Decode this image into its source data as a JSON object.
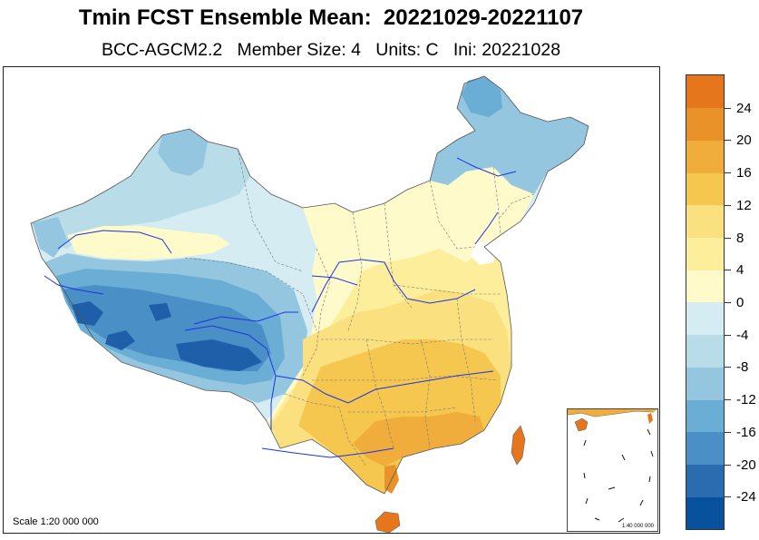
{
  "title": "Tmin FCST Ensemble Mean:  20221029-20221107",
  "subtitle": "BCC-AGCM2.2   Member Size: 4   Units: C   Ini: 20221028",
  "scale_label": "Scale 1:20 000 000",
  "inset_scale_label": "1:40 000 000",
  "colorbar": {
    "colors": [
      "#08519c",
      "#2b6cb0",
      "#4a90c6",
      "#6aaed6",
      "#95c6e0",
      "#b8dde8",
      "#d4ecf2",
      "#fefac9",
      "#fdee9c",
      "#fbe080",
      "#f5c74e",
      "#f0ad3c",
      "#ea922a",
      "#e5761b"
    ],
    "labels": [
      "-24",
      "-20",
      "-16",
      "-12",
      "-8",
      "-4",
      "0",
      "4",
      "8",
      "12",
      "16",
      "20",
      "24"
    ]
  },
  "map_colors": {
    "very_cold": "#1f5ea8",
    "cold": "#4a90c6",
    "cool": "#6aaed6",
    "chilly": "#95c6e0",
    "cold_light": "#b8dde8",
    "near_zero": "#d4ecf2",
    "mild": "#fefac9",
    "warm": "#fdee9c",
    "warmer": "#fbe080",
    "hot": "#f5c74e",
    "hotter": "#f0ad3c",
    "hottest": "#e5761b",
    "rivers": "#1a33e6",
    "borders": "#555555"
  }
}
